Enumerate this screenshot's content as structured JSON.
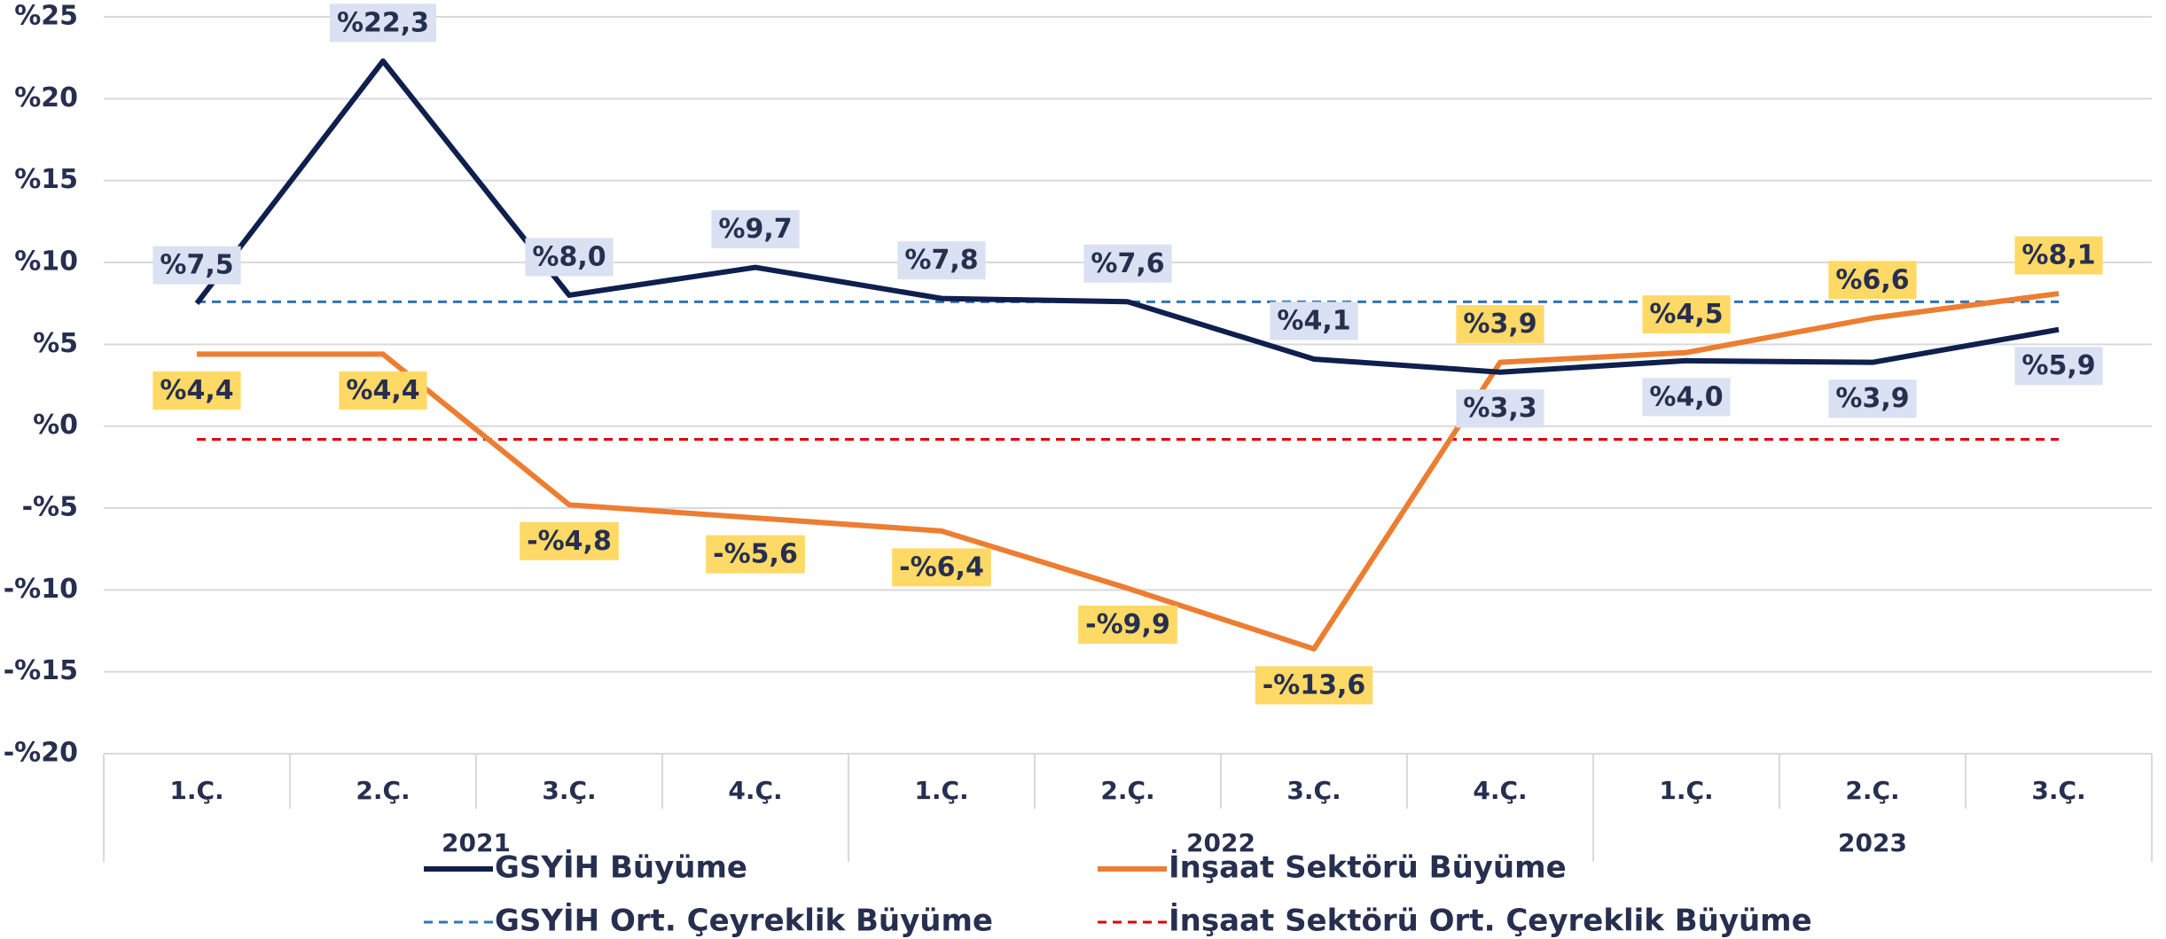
{
  "chart_data": {
    "type": "line",
    "categories": [
      "1.Ç.",
      "2.Ç.",
      "3.Ç.",
      "4.Ç.",
      "1.Ç.",
      "2.Ç.",
      "3.Ç.",
      "4.Ç.",
      "1.Ç.",
      "2.Ç.",
      "3.Ç."
    ],
    "groups": [
      {
        "name": "2021",
        "size": 4
      },
      {
        "name": "2022",
        "size": 4
      },
      {
        "name": "2023",
        "size": 3
      }
    ],
    "series": [
      {
        "name": "GSYİH Büyüme",
        "color": "#0f1f4e",
        "style": "solid",
        "values": [
          7.5,
          22.3,
          8.0,
          9.7,
          7.8,
          7.6,
          4.1,
          3.3,
          4.0,
          3.9,
          5.9
        ],
        "value_labels": [
          "%7,5",
          "%22,3",
          "%8,0",
          "%9,7",
          "%7,8",
          "%7,6",
          "%4,1",
          "%3,3",
          "%4,0",
          "%3,9",
          "%5,9"
        ],
        "label_color": "#d9e1f2"
      },
      {
        "name": "İnşaat Sektörü Büyüme",
        "color": "#ed7d31",
        "style": "solid",
        "values": [
          4.4,
          4.4,
          -4.8,
          -5.6,
          -6.4,
          -9.9,
          -13.6,
          3.9,
          4.5,
          6.6,
          8.1
        ],
        "value_labels": [
          "%4,4",
          "%4,4",
          "-%4,8",
          "-%5,6",
          "-%6,4",
          "-%9,9",
          "-%13,6",
          "%3,9",
          "%4,5",
          "%6,6",
          "%8,1"
        ],
        "label_color": "#ffd966"
      },
      {
        "name": "GSYİH Ort. Çeyreklik Büyüme",
        "color": "#2e75b6",
        "style": "dashed",
        "values": [
          7.6,
          7.6,
          7.6,
          7.6,
          7.6,
          7.6,
          7.6,
          7.6,
          7.6,
          7.6,
          7.6
        ]
      },
      {
        "name": "İnşaat Sektörü Ort. Çeyreklik Büyüme",
        "color": "#e00000",
        "style": "dashed",
        "values": [
          -0.8,
          -0.8,
          -0.8,
          -0.8,
          -0.8,
          -0.8,
          -0.8,
          -0.8,
          -0.8,
          -0.8,
          -0.8
        ]
      }
    ],
    "ylim": [
      -20,
      25
    ],
    "yticks": [
      {
        "value": -20,
        "label": "-%20"
      },
      {
        "value": -15,
        "label": "-%15"
      },
      {
        "value": -10,
        "label": "-%10"
      },
      {
        "value": -5,
        "label": "-%5"
      },
      {
        "value": 0,
        "label": "%0"
      },
      {
        "value": 5,
        "label": "%5"
      },
      {
        "value": 10,
        "label": "%10"
      },
      {
        "value": 15,
        "label": "%15"
      },
      {
        "value": 20,
        "label": "%20"
      },
      {
        "value": 25,
        "label": "%25"
      }
    ],
    "grid": true,
    "legend": "bottom"
  }
}
